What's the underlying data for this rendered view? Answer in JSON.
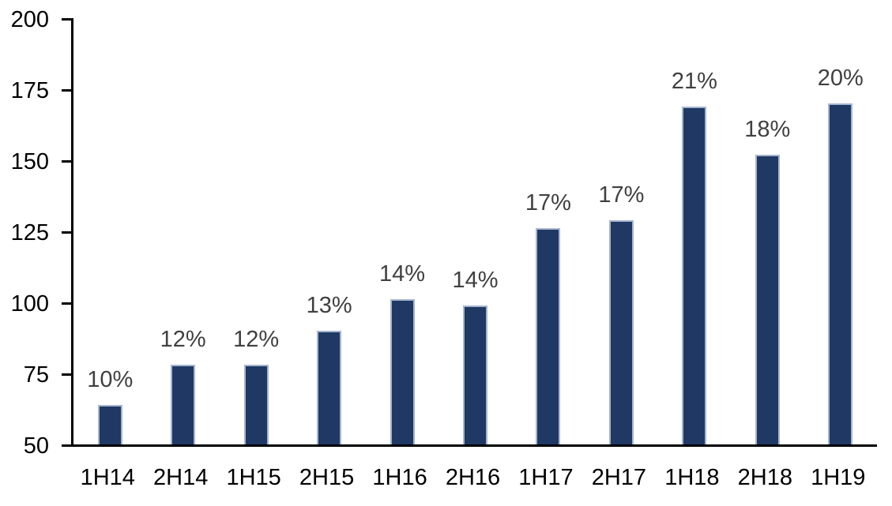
{
  "chart_data": {
    "type": "bar",
    "title": "",
    "xlabel": "",
    "ylabel": "",
    "categories": [
      "1H14",
      "2H14",
      "1H15",
      "2H15",
      "1H16",
      "2H16",
      "1H17",
      "2H17",
      "1H18",
      "2H18",
      "1H19"
    ],
    "values": [
      64,
      78,
      78,
      90,
      101,
      99,
      126,
      129,
      169,
      152,
      170
    ],
    "data_labels": [
      "10%",
      "12%",
      "12%",
      "13%",
      "14%",
      "14%",
      "17%",
      "17%",
      "21%",
      "18%",
      "20%"
    ],
    "y_ticks": [
      50,
      75,
      100,
      125,
      150,
      175,
      200
    ],
    "ylim": [
      50,
      200
    ],
    "grid": false,
    "legend_position": "none",
    "bar_color": "#1f3864",
    "bar_border_color": "#a6b5ce",
    "data_label_color": "#404040",
    "axis_color": "#000000"
  }
}
